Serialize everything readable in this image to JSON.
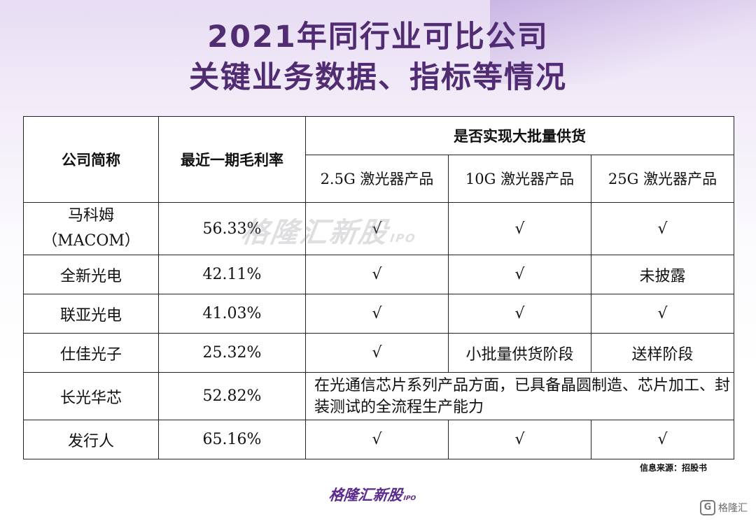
{
  "title": {
    "line1": "2021年同行业可比公司",
    "line2": "关键业务数据、指标等情况"
  },
  "watermark": {
    "text": "格隆汇新股",
    "ipo": "IPO"
  },
  "table": {
    "header": {
      "company": "公司简称",
      "margin": "最近一期毛利率",
      "supply": "是否实现大批量供货",
      "col_2_5g": "2.5G 激光器产品",
      "col_10g": "10G 激光器产品",
      "col_25g": "25G 激光器产品"
    },
    "rows": [
      {
        "company": "马科姆（MACOM）",
        "margin": "56.33%",
        "g2_5": "√",
        "g10": "√",
        "g25": "√"
      },
      {
        "company": "全新光电",
        "margin": "42.11%",
        "g2_5": "√",
        "g10": "√",
        "g25": "未披露"
      },
      {
        "company": "联亚光电",
        "margin": "41.03%",
        "g2_5": "√",
        "g10": "√",
        "g25": "√"
      },
      {
        "company": "仕佳光子",
        "margin": "25.32%",
        "g2_5": "√",
        "g10": "小批量供货阶段",
        "g25": "送样阶段"
      },
      {
        "company": "长光华芯",
        "margin": "52.82%",
        "note": "在光通信芯片系列产品方面，已具备晶圆制造、芯片加工、封装测试的全流程生产能力"
      },
      {
        "company": "发行人",
        "margin": "65.16%",
        "g2_5": "√",
        "g10": "√",
        "g25": "√"
      }
    ]
  },
  "source": "信息来源：招股书",
  "brand": {
    "text": "格隆汇新股",
    "ipo": "IPO"
  },
  "corner_logo": {
    "icon": "G",
    "text": "格隆汇"
  }
}
